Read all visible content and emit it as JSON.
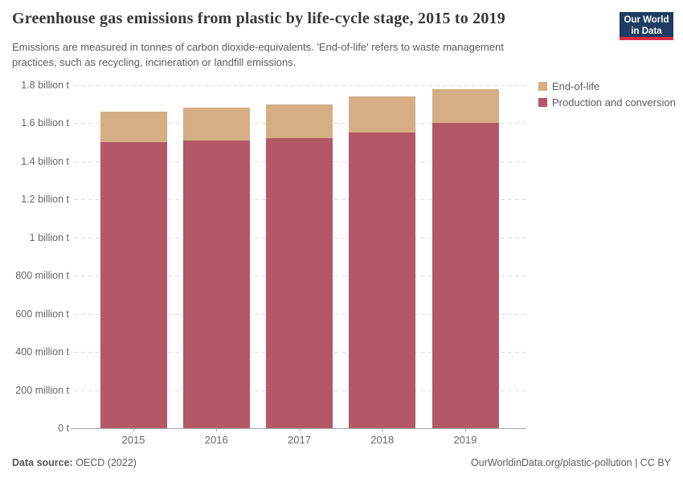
{
  "header": {
    "title": "Greenhouse gas emissions from plastic by life-cycle stage, 2015 to 2019",
    "subtitle_line1": "Emissions are measured in tonnes of carbon dioxide-equivalents. 'End-of-life' refers to waste management",
    "subtitle_line2": "practices, such as recycling, incineration or landfill emissions.",
    "logo": {
      "line1": "Our World",
      "line2": "in Data",
      "bg_color": "#1d3d63",
      "accent_color": "#dc2c43"
    }
  },
  "chart_data": {
    "type": "bar",
    "stacked": true,
    "title": "Greenhouse gas emissions from plastic by life-cycle stage, 2015 to 2019",
    "unit": "billion tonnes CO2-equivalents",
    "categories": [
      "2015",
      "2016",
      "2017",
      "2018",
      "2019"
    ],
    "series": [
      {
        "name": "Production and conversion",
        "color": "#b45867",
        "values_billion_t": [
          1.5,
          1.51,
          1.52,
          1.55,
          1.6
        ]
      },
      {
        "name": "End-of-life",
        "color": "#d6ae85",
        "values_billion_t": [
          0.16,
          0.17,
          0.18,
          0.19,
          0.18
        ]
      }
    ],
    "totals_billion_t": [
      1.66,
      1.68,
      1.7,
      1.74,
      1.78
    ],
    "ylim_billion_t": [
      0,
      1.8
    ],
    "ytick_step_billion_t": 0.2,
    "ytick_labels": [
      "0 t",
      "200 million t",
      "400 million t",
      "600 million t",
      "800 million t",
      "1 billion t",
      "1.2 billion t",
      "1.4 billion t",
      "1.6 billion t",
      "1.8 billion t"
    ],
    "grid": "horizontal-dashed",
    "legend_position": "top-right",
    "legend_order": [
      "End-of-life",
      "Production and conversion"
    ]
  },
  "footer": {
    "source_label": "Data source:",
    "source_value": " OECD (2022)",
    "right_text": "OurWorldinData.org/plastic-pollution | CC BY"
  }
}
